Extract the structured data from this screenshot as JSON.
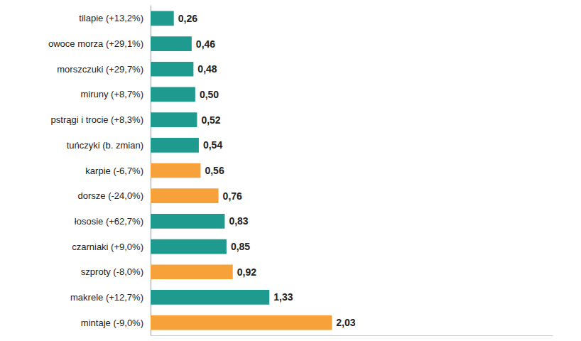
{
  "chart_data": {
    "type": "bar",
    "orientation": "horizontal",
    "categories": [
      "tilapie (+13,2%)",
      "owoce morza (+29,1%)",
      "morszczuki (+29,7%)",
      "miruny (+8,7%)",
      "pstrągi i trocie (+8,3%)",
      "tuńczyki (b. zmian)",
      "karpie (-6,7%)",
      "dorsze (-24,0%)",
      "łososie (+62,7%)",
      "czarniaki (+9,0%)",
      "szproty (-8,0%)",
      "makrele (+12,7%)",
      "mintaje (-9,0%)"
    ],
    "values": [
      0.26,
      0.46,
      0.48,
      0.5,
      0.52,
      0.54,
      0.56,
      0.76,
      0.83,
      0.85,
      0.92,
      1.33,
      2.03
    ],
    "value_labels": [
      "0,26",
      "0,46",
      "0,48",
      "0,50",
      "0,52",
      "0,54",
      "0,56",
      "0,76",
      "0,83",
      "0,85",
      "0,92",
      "1,33",
      "2,03"
    ],
    "colors": [
      "#1f9a8f",
      "#1f9a8f",
      "#1f9a8f",
      "#1f9a8f",
      "#1f9a8f",
      "#1f9a8f",
      "#f7a13a",
      "#f7a13a",
      "#1f9a8f",
      "#1f9a8f",
      "#f7a13a",
      "#1f9a8f",
      "#f7a13a"
    ],
    "xlim": [
      0,
      4.5
    ],
    "data_labels": true,
    "tick_labels": "y",
    "grid": false
  }
}
